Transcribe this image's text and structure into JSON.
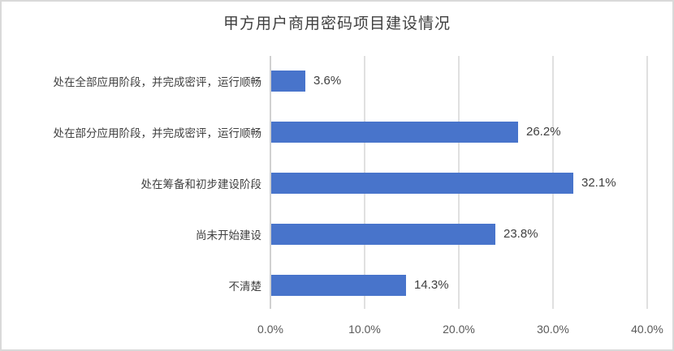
{
  "chart_data": {
    "type": "bar",
    "orientation": "horizontal",
    "title": "甲方用户商用密码项目建设情况",
    "categories": [
      "处在全部应用阶段，并完成密评，运行顺畅",
      "处在部分应用阶段，并完成密评，运行顺畅",
      "处在筹备和初步建设阶段",
      "尚未开始建设",
      "不清楚"
    ],
    "values": [
      3.6,
      26.2,
      32.1,
      23.8,
      14.3
    ],
    "value_labels": [
      "3.6%",
      "26.2%",
      "32.1%",
      "23.8%",
      "14.3%"
    ],
    "xlabel": "",
    "ylabel": "",
    "xlim": [
      0,
      40
    ],
    "x_ticks": [
      "0.0%",
      "10.0%",
      "20.0%",
      "30.0%",
      "40.0%"
    ],
    "grid": "vertical",
    "legend": null,
    "bar_color": "#4874cb"
  }
}
